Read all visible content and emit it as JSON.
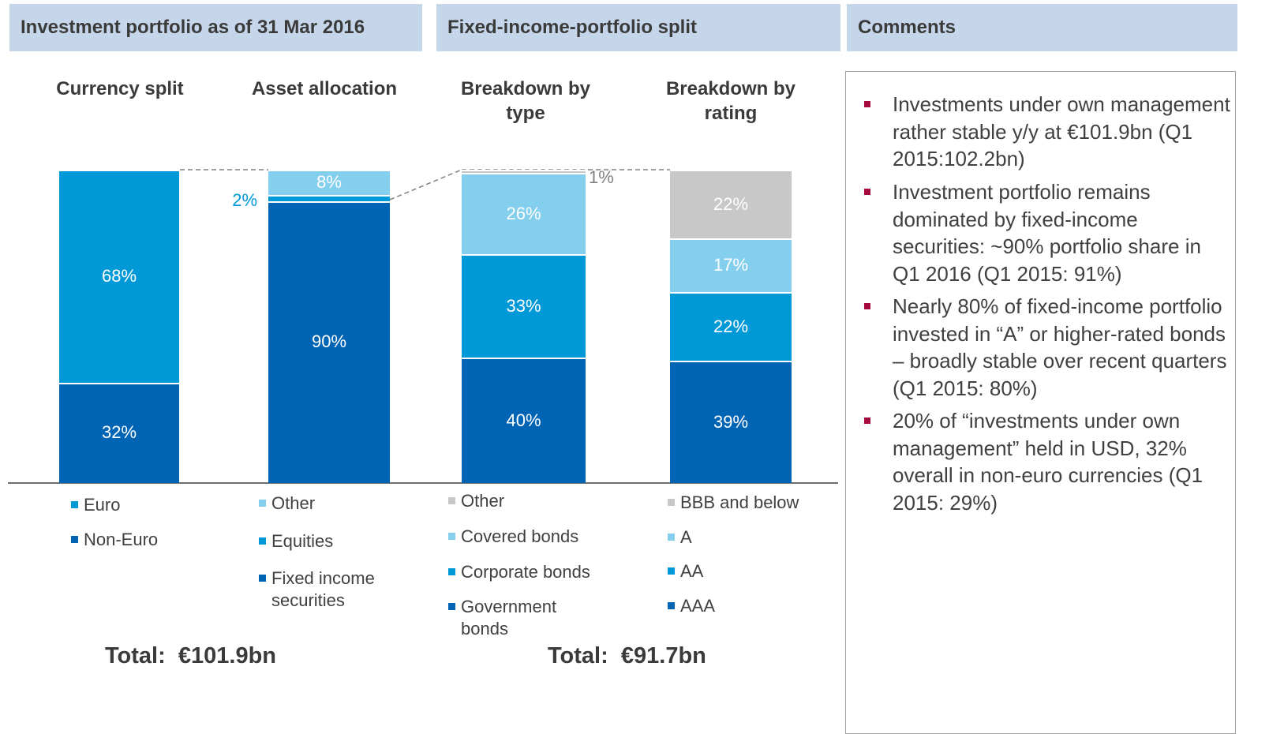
{
  "headers": [
    "Investment portfolio as of 31 Mar 2016",
    "Fixed-income-portfolio split",
    "Comments"
  ],
  "chart_data": [
    {
      "type": "bar",
      "title": "Currency split",
      "ylim": [
        0,
        100
      ],
      "series": [
        {
          "name": "Euro",
          "color": "#0099d8",
          "values": [
            68
          ],
          "value_labels": [
            "68%"
          ]
        },
        {
          "name": "Non-Euro",
          "color": "#0064b4",
          "values": [
            32
          ],
          "value_labels": [
            "32%"
          ]
        }
      ]
    },
    {
      "type": "bar",
      "title": "Asset allocation",
      "ylim": [
        0,
        100
      ],
      "series": [
        {
          "name": "Other",
          "color": "#84cfee",
          "values": [
            8
          ],
          "value_labels": [
            "8%"
          ]
        },
        {
          "name": "Equities",
          "color": "#0099d8",
          "values": [
            2
          ],
          "value_labels": [
            "2%"
          ]
        },
        {
          "name": "Fixed income securities",
          "color": "#0064b4",
          "values": [
            90
          ],
          "value_labels": [
            "90%"
          ]
        }
      ]
    },
    {
      "type": "bar",
      "title": "Breakdown by type",
      "ylim": [
        0,
        100
      ],
      "series": [
        {
          "name": "Other",
          "color": "#c8c8c8",
          "values": [
            1
          ],
          "value_labels": [
            "1%"
          ]
        },
        {
          "name": "Covered bonds",
          "color": "#84cfee",
          "values": [
            26
          ],
          "value_labels": [
            "26%"
          ]
        },
        {
          "name": "Corporate bonds",
          "color": "#0099d8",
          "values": [
            33
          ],
          "value_labels": [
            "33%"
          ]
        },
        {
          "name": "Government bonds",
          "color": "#0064b4",
          "values": [
            40
          ],
          "value_labels": [
            "40%"
          ]
        }
      ]
    },
    {
      "type": "bar",
      "title": "Breakdown by rating",
      "ylim": [
        0,
        100
      ],
      "series": [
        {
          "name": "BBB and below",
          "color": "#c8c8c8",
          "values": [
            22
          ],
          "value_labels": [
            "22%"
          ]
        },
        {
          "name": "A",
          "color": "#84cfee",
          "values": [
            17
          ],
          "value_labels": [
            "17%"
          ]
        },
        {
          "name": "AA",
          "color": "#0099d8",
          "values": [
            22
          ],
          "value_labels": [
            "22%"
          ]
        },
        {
          "name": "AAA",
          "color": "#0064b4",
          "values": [
            39
          ],
          "value_labels": [
            "39%"
          ]
        }
      ]
    }
  ],
  "totals": [
    "Total:  €101.9bn",
    "Total:  €91.7bn"
  ],
  "comments": [
    "Investments under own management rather stable y/y at €101.9bn (Q1 2015:102.2bn)",
    "Investment portfolio remains dominated by fixed-income securities: ~90% portfolio share in Q1 2016 (Q1 2015: 91%)",
    "Nearly 80% of fixed-income portfolio invested in “A” or higher-rated bonds – broadly stable over recent quarters (Q1 2015: 80%)",
    "20% of “investments under own management” held in USD, 32% overall in non-euro currencies (Q1 2015: 29%)"
  ]
}
